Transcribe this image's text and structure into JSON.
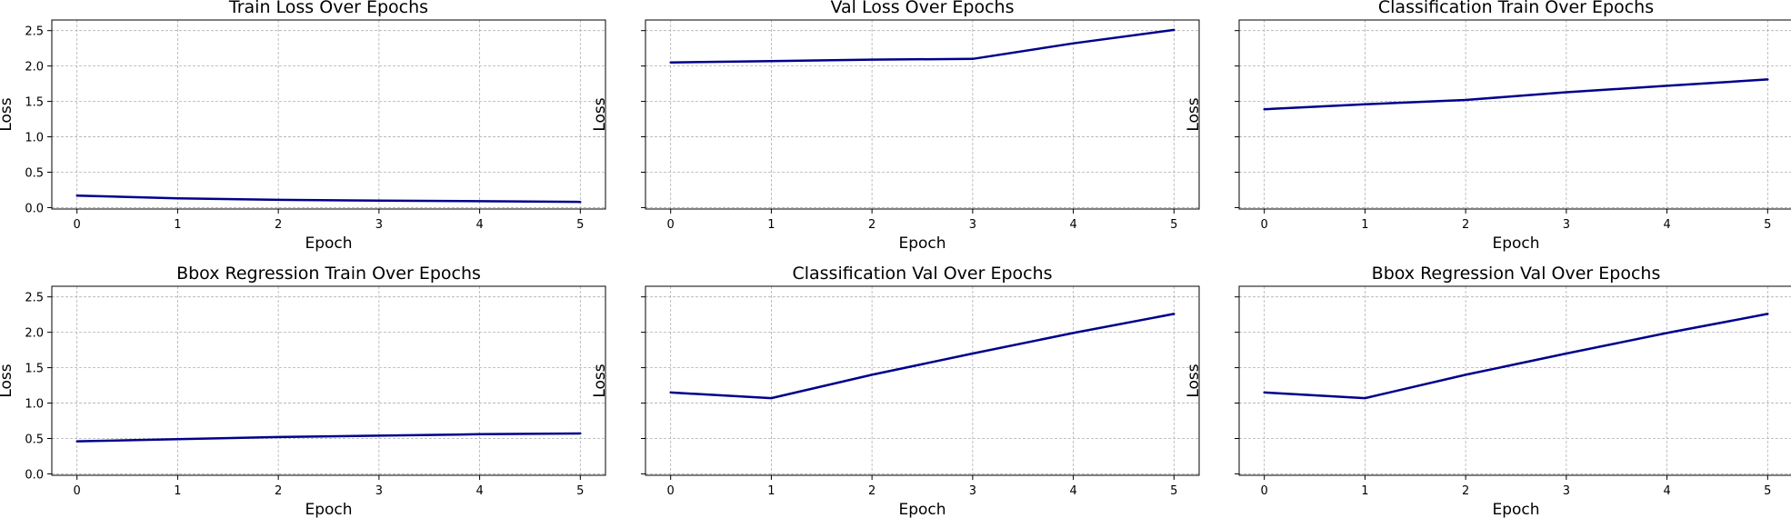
{
  "figure": {
    "line_color": "#00008b",
    "grid_color": "#b0b0b0"
  },
  "chart_data": [
    {
      "type": "line",
      "title": "Train Loss Over Epochs",
      "xlabel": "Epoch",
      "ylabel": "Loss",
      "x": [
        0,
        1,
        2,
        3,
        4,
        5
      ],
      "y": [
        0.17,
        0.13,
        0.11,
        0.1,
        0.09,
        0.08
      ],
      "xlim": [
        -0.25,
        5.25
      ],
      "ylim": [
        -0.02,
        2.65
      ],
      "xticks": [
        "0",
        "1",
        "2",
        "3",
        "4",
        "5"
      ],
      "yticks": [
        0.0,
        0.5,
        1.0,
        1.5,
        2.0,
        2.5
      ],
      "ytick_labels": [
        "0.0",
        "0.5",
        "1.0",
        "1.5",
        "2.0",
        "2.5"
      ],
      "grid": true
    },
    {
      "type": "line",
      "title": "Val Loss Over Epochs",
      "xlabel": "Epoch",
      "ylabel": "Loss",
      "x": [
        0,
        1,
        2,
        3,
        4,
        5
      ],
      "y": [
        2.05,
        2.07,
        2.09,
        2.1,
        2.32,
        2.51
      ],
      "xlim": [
        -0.25,
        5.25
      ],
      "ylim": [
        -0.02,
        2.65
      ],
      "xticks": [
        "0",
        "1",
        "2",
        "3",
        "4",
        "5"
      ],
      "yticks": [
        0.0,
        0.5,
        1.0,
        1.5,
        2.0,
        2.5
      ],
      "ytick_labels": [],
      "grid": true
    },
    {
      "type": "line",
      "title": "Classification Train Over Epochs",
      "xlabel": "Epoch",
      "ylabel": "Loss",
      "x": [
        0,
        1,
        2,
        3,
        4,
        5
      ],
      "y": [
        1.39,
        1.46,
        1.52,
        1.63,
        1.72,
        1.81
      ],
      "xlim": [
        -0.25,
        5.25
      ],
      "ylim": [
        -0.02,
        2.65
      ],
      "xticks": [
        "0",
        "1",
        "2",
        "3",
        "4",
        "5"
      ],
      "yticks": [
        0.0,
        0.5,
        1.0,
        1.5,
        2.0,
        2.5
      ],
      "ytick_labels": [],
      "grid": true
    },
    {
      "type": "line",
      "title": "Bbox Regression Train Over Epochs",
      "xlabel": "Epoch",
      "ylabel": "Loss",
      "x": [
        0,
        1,
        2,
        3,
        4,
        5
      ],
      "y": [
        0.46,
        0.49,
        0.52,
        0.54,
        0.56,
        0.57
      ],
      "xlim": [
        -0.25,
        5.25
      ],
      "ylim": [
        -0.02,
        2.65
      ],
      "xticks": [
        "0",
        "1",
        "2",
        "3",
        "4",
        "5"
      ],
      "yticks": [
        0.0,
        0.5,
        1.0,
        1.5,
        2.0,
        2.5
      ],
      "ytick_labels": [
        "0.0",
        "0.5",
        "1.0",
        "1.5",
        "2.0",
        "2.5"
      ],
      "grid": true
    },
    {
      "type": "line",
      "title": "Classification Val Over Epochs",
      "xlabel": "Epoch",
      "ylabel": "Loss",
      "x": [
        0,
        1,
        2,
        3,
        4,
        5
      ],
      "y": [
        1.15,
        1.07,
        1.4,
        1.7,
        1.99,
        2.26
      ],
      "xlim": [
        -0.25,
        5.25
      ],
      "ylim": [
        -0.02,
        2.65
      ],
      "xticks": [
        "0",
        "1",
        "2",
        "3",
        "4",
        "5"
      ],
      "yticks": [
        0.0,
        0.5,
        1.0,
        1.5,
        2.0,
        2.5
      ],
      "ytick_labels": [],
      "grid": true
    },
    {
      "type": "line",
      "title": "Bbox Regression Val Over Epochs",
      "xlabel": "Epoch",
      "ylabel": "Loss",
      "x": [
        0,
        1,
        2,
        3,
        4,
        5
      ],
      "y": [
        1.15,
        1.07,
        1.4,
        1.7,
        1.99,
        2.26
      ],
      "xlim": [
        -0.25,
        5.25
      ],
      "ylim": [
        -0.02,
        2.65
      ],
      "xticks": [
        "0",
        "1",
        "2",
        "3",
        "4",
        "5"
      ],
      "yticks": [
        0.0,
        0.5,
        1.0,
        1.5,
        2.0,
        2.5
      ],
      "ytick_labels": [],
      "grid": true
    }
  ]
}
